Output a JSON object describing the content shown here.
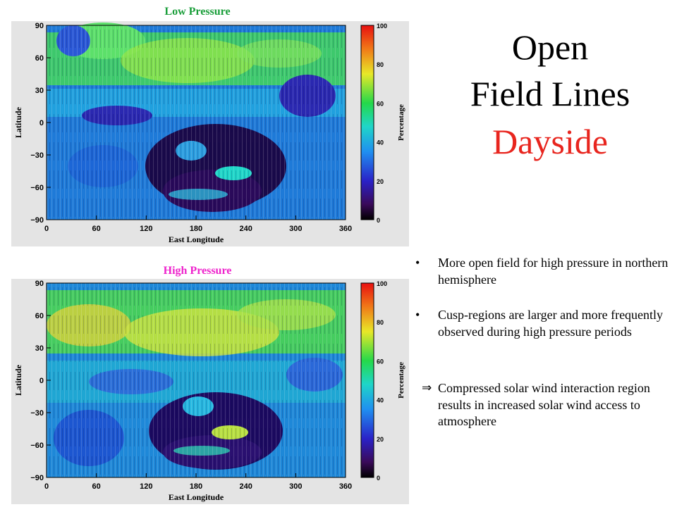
{
  "slide": {
    "title_line1": "Open",
    "title_line2": "Field Lines",
    "title_line3": "Dayside",
    "title_color": "#000000",
    "accent_color": "#e8251e"
  },
  "bullets": [
    {
      "marker": "•",
      "text": "More open field for high pressure in northern hemisphere"
    },
    {
      "marker": "•",
      "text": "Cusp-regions are larger and more frequently observed during high pressure periods"
    },
    {
      "marker": "⇒",
      "text": "Compressed solar wind interaction region results in increased solar wind access to atmosphere"
    }
  ],
  "maps": [
    {
      "title": "Low Pressure",
      "title_color": "#1a9e3a",
      "ylabel": "Latitude",
      "xlabel": "East Longitude",
      "colorbar_label": "Percentage",
      "x_ticks": [
        "0",
        "60",
        "120",
        "180",
        "240",
        "300",
        "360"
      ],
      "y_ticks": [
        "90",
        "60",
        "30",
        "0",
        "−30",
        "−60",
        "−90"
      ],
      "colorbar_ticks": [
        "100",
        "80",
        "60",
        "40",
        "20",
        "0"
      ]
    },
    {
      "title": "High Pressure",
      "title_color": "#ee22cc",
      "ylabel": "Latitude",
      "xlabel": "East Longitude",
      "colorbar_label": "Percentage",
      "x_ticks": [
        "0",
        "60",
        "120",
        "180",
        "240",
        "300",
        "360"
      ],
      "y_ticks": [
        "90",
        "60",
        "30",
        "0",
        "−30",
        "−60",
        "−90"
      ],
      "colorbar_ticks": [
        "100",
        "80",
        "60",
        "40",
        "20",
        "0"
      ]
    }
  ]
}
